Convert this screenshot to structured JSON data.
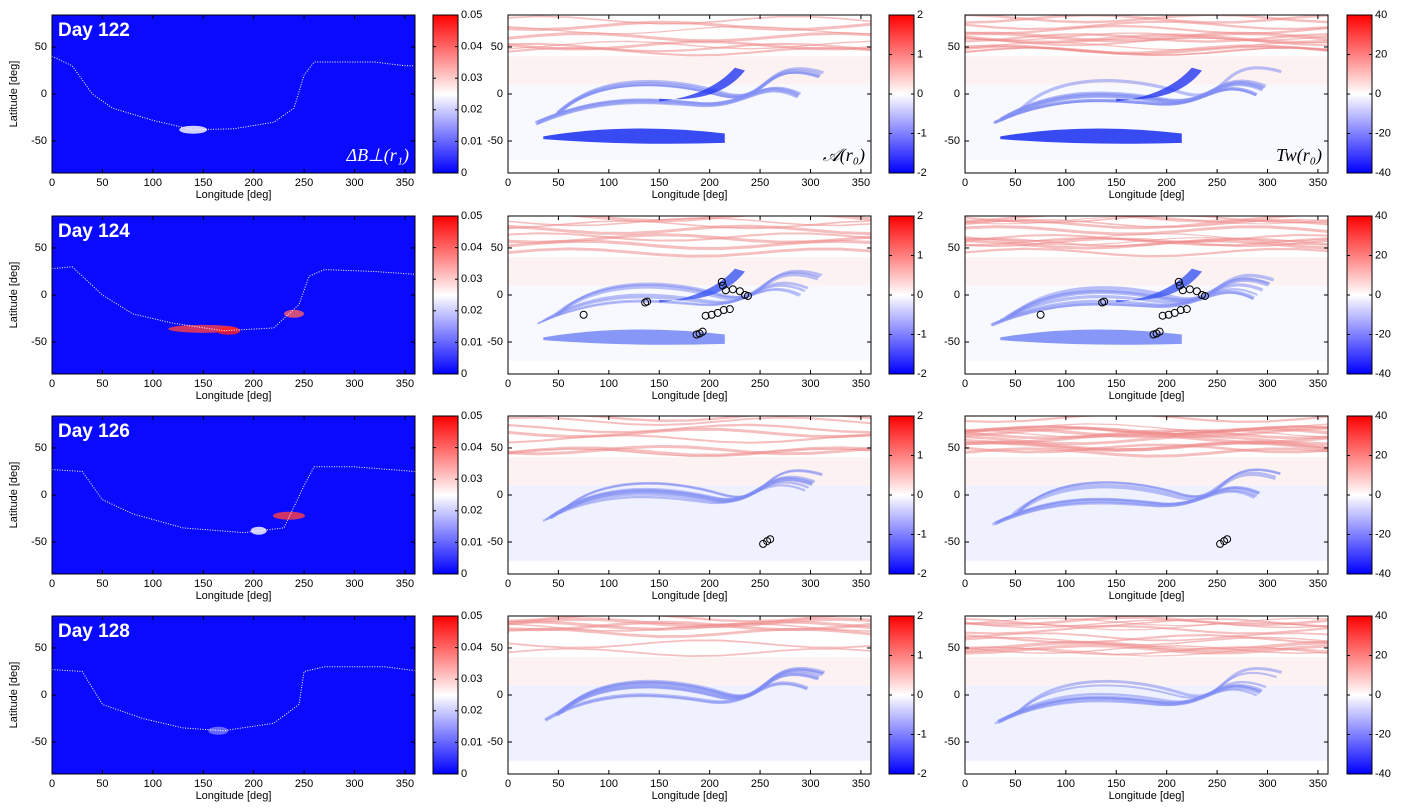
{
  "chart_data": [
    {
      "type": "heatmap",
      "annotation": "Day 122",
      "quantity": "ΔB⊥(r₁)",
      "xlabel": "Longitude [deg]",
      "ylabel": "Latitude [deg]",
      "xlim": [
        0,
        360
      ],
      "ylim": [
        -84,
        84
      ],
      "xticks": [
        0,
        50,
        100,
        150,
        200,
        250,
        300,
        350
      ],
      "yticks": [
        -50,
        0,
        50
      ],
      "background": "#0a0aff",
      "colorbar": {
        "lim": [
          0,
          0.05
        ],
        "ticks": [
          0,
          0.01,
          0.02,
          0.03,
          0.04,
          0.05
        ],
        "colors": [
          "#0000ff",
          "#ffffff",
          "#ff0000"
        ]
      },
      "neutral_line": {
        "x": [
          0,
          20,
          40,
          60,
          100,
          140,
          180,
          220,
          240,
          250,
          260,
          320,
          350,
          360
        ],
        "y": [
          40,
          30,
          0,
          -15,
          -28,
          -38,
          -37,
          -30,
          -15,
          20,
          34,
          34,
          30,
          30
        ]
      }
    },
    {
      "type": "heatmap",
      "quantity": "𝒜(r₀)",
      "xlabel": "Longitude [deg]",
      "xlim": [
        0,
        360
      ],
      "ylim": [
        -84,
        84
      ],
      "xticks": [
        0,
        50,
        100,
        150,
        200,
        250,
        300,
        350
      ],
      "yticks": [
        -50,
        0,
        50
      ],
      "colorbar": {
        "lim": [
          -2,
          2
        ],
        "ticks": [
          -2,
          -1,
          0,
          1,
          2
        ],
        "colors": [
          "#0000ff",
          "#ffffff",
          "#ff0000"
        ]
      }
    },
    {
      "type": "heatmap",
      "quantity": "Tw(r₀)",
      "xlabel": "Longitude [deg]",
      "xlim": [
        0,
        360
      ],
      "ylim": [
        -84,
        84
      ],
      "xticks": [
        0,
        50,
        100,
        150,
        200,
        250,
        300,
        350
      ],
      "yticks": [
        -50,
        0,
        50
      ],
      "colorbar": {
        "lim": [
          -40,
          40
        ],
        "ticks": [
          -40,
          -20,
          0,
          20,
          40
        ],
        "colors": [
          "#0000ff",
          "#ffffff",
          "#ff0000"
        ]
      }
    },
    {
      "type": "heatmap",
      "annotation": "Day 124",
      "xlabel": "Longitude [deg]",
      "ylabel": "Latitude [deg]",
      "xlim": [
        0,
        360
      ],
      "ylim": [
        -84,
        84
      ],
      "xticks": [
        0,
        50,
        100,
        150,
        200,
        250,
        300,
        350
      ],
      "yticks": [
        -50,
        0,
        50
      ],
      "background": "#0a0aff",
      "colorbar": {
        "lim": [
          0,
          0.05
        ],
        "ticks": [
          0,
          0.01,
          0.02,
          0.03,
          0.04,
          0.05
        ],
        "colors": [
          "#0000ff",
          "#ffffff",
          "#ff0000"
        ]
      },
      "neutral_line": {
        "x": [
          0,
          20,
          50,
          80,
          120,
          170,
          220,
          245,
          255,
          270,
          320,
          360
        ],
        "y": [
          28,
          30,
          0,
          -20,
          -30,
          -38,
          -35,
          -10,
          20,
          27,
          25,
          22
        ]
      }
    },
    {
      "type": "heatmap",
      "xlabel": "Longitude [deg]",
      "xlim": [
        0,
        360
      ],
      "ylim": [
        -84,
        84
      ],
      "xticks": [
        0,
        50,
        100,
        150,
        200,
        250,
        300,
        350
      ],
      "yticks": [
        -50,
        0,
        50
      ],
      "colorbar": {
        "lim": [
          -2,
          2
        ],
        "ticks": [
          -2,
          -1,
          0,
          1,
          2
        ],
        "colors": [
          "#0000ff",
          "#ffffff",
          "#ff0000"
        ]
      },
      "markers": {
        "x": [
          75,
          136,
          138,
          212,
          213,
          216,
          223,
          230,
          235,
          238,
          196,
          202,
          208,
          214,
          220,
          187,
          190,
          193
        ],
        "y": [
          -21,
          -8,
          -7,
          14,
          10,
          5,
          6,
          4,
          0,
          -1,
          -22,
          -21,
          -19,
          -16,
          -15,
          -42,
          -41,
          -39
        ]
      }
    },
    {
      "type": "heatmap",
      "xlabel": "Longitude [deg]",
      "xlim": [
        0,
        360
      ],
      "ylim": [
        -84,
        84
      ],
      "xticks": [
        0,
        50,
        100,
        150,
        200,
        250,
        300,
        350
      ],
      "yticks": [
        -50,
        0,
        50
      ],
      "colorbar": {
        "lim": [
          -40,
          40
        ],
        "ticks": [
          -40,
          -20,
          0,
          20,
          40
        ],
        "colors": [
          "#0000ff",
          "#ffffff",
          "#ff0000"
        ]
      },
      "markers": {
        "x": [
          75,
          136,
          138,
          212,
          213,
          216,
          223,
          230,
          235,
          238,
          196,
          202,
          208,
          214,
          220,
          187,
          190,
          193
        ],
        "y": [
          -21,
          -8,
          -7,
          14,
          10,
          5,
          6,
          4,
          0,
          -1,
          -22,
          -21,
          -19,
          -16,
          -15,
          -42,
          -41,
          -39
        ]
      }
    },
    {
      "type": "heatmap",
      "annotation": "Day 126",
      "xlabel": "Longitude [deg]",
      "ylabel": "Latitude [deg]",
      "xlim": [
        0,
        360
      ],
      "ylim": [
        -84,
        84
      ],
      "xticks": [
        0,
        50,
        100,
        150,
        200,
        250,
        300,
        350
      ],
      "yticks": [
        -50,
        0,
        50
      ],
      "background": "#0a0aff",
      "colorbar": {
        "lim": [
          0,
          0.05
        ],
        "ticks": [
          0,
          0.01,
          0.02,
          0.03,
          0.04,
          0.05
        ],
        "colors": [
          "#0000ff",
          "#ffffff",
          "#ff0000"
        ]
      },
      "neutral_line": {
        "x": [
          0,
          30,
          50,
          80,
          130,
          190,
          230,
          250,
          260,
          300,
          360
        ],
        "y": [
          27,
          25,
          -5,
          -20,
          -35,
          -40,
          -35,
          10,
          30,
          30,
          25
        ]
      }
    },
    {
      "type": "heatmap",
      "xlabel": "Longitude [deg]",
      "xlim": [
        0,
        360
      ],
      "ylim": [
        -84,
        84
      ],
      "xticks": [
        0,
        50,
        100,
        150,
        200,
        250,
        300,
        350
      ],
      "yticks": [
        -50,
        0,
        50
      ],
      "colorbar": {
        "lim": [
          -2,
          2
        ],
        "ticks": [
          -2,
          -1,
          0,
          1,
          2
        ],
        "colors": [
          "#0000ff",
          "#ffffff",
          "#ff0000"
        ]
      },
      "markers": {
        "x": [
          253,
          257,
          260
        ],
        "y": [
          -52,
          -49,
          -47
        ]
      }
    },
    {
      "type": "heatmap",
      "xlabel": "Longitude [deg]",
      "xlim": [
        0,
        360
      ],
      "ylim": [
        -84,
        84
      ],
      "xticks": [
        0,
        50,
        100,
        150,
        200,
        250,
        300,
        350
      ],
      "yticks": [
        -50,
        0,
        50
      ],
      "colorbar": {
        "lim": [
          -40,
          40
        ],
        "ticks": [
          -40,
          -20,
          0,
          20,
          40
        ],
        "colors": [
          "#0000ff",
          "#ffffff",
          "#ff0000"
        ]
      },
      "markers": {
        "x": [
          253,
          257,
          260
        ],
        "y": [
          -52,
          -49,
          -47
        ]
      }
    },
    {
      "type": "heatmap",
      "annotation": "Day 128",
      "xlabel": "Longitude [deg]",
      "ylabel": "Latitude [deg]",
      "xlim": [
        0,
        360
      ],
      "ylim": [
        -84,
        84
      ],
      "xticks": [
        0,
        50,
        100,
        150,
        200,
        250,
        300,
        350
      ],
      "yticks": [
        -50,
        0,
        50
      ],
      "background": "#0a0aff",
      "colorbar": {
        "lim": [
          0,
          0.05
        ],
        "ticks": [
          0,
          0.01,
          0.02,
          0.03,
          0.04,
          0.05
        ],
        "colors": [
          "#0000ff",
          "#ffffff",
          "#ff0000"
        ]
      },
      "neutral_line": {
        "x": [
          0,
          30,
          50,
          90,
          130,
          170,
          220,
          245,
          250,
          270,
          330,
          360
        ],
        "y": [
          27,
          25,
          -10,
          -25,
          -35,
          -38,
          -30,
          -10,
          25,
          30,
          30,
          26
        ]
      }
    },
    {
      "type": "heatmap",
      "xlabel": "Longitude [deg]",
      "xlim": [
        0,
        360
      ],
      "ylim": [
        -84,
        84
      ],
      "xticks": [
        0,
        50,
        100,
        150,
        200,
        250,
        300,
        350
      ],
      "yticks": [
        -50,
        0,
        50
      ],
      "colorbar": {
        "lim": [
          -2,
          2
        ],
        "ticks": [
          -2,
          -1,
          0,
          1,
          2
        ],
        "colors": [
          "#0000ff",
          "#ffffff",
          "#ff0000"
        ]
      }
    },
    {
      "type": "heatmap",
      "xlabel": "Longitude [deg]",
      "xlim": [
        0,
        360
      ],
      "ylim": [
        -84,
        84
      ],
      "xticks": [
        0,
        50,
        100,
        150,
        200,
        250,
        300,
        350
      ],
      "yticks": [
        -50,
        0,
        50
      ],
      "colorbar": {
        "lim": [
          -40,
          40
        ],
        "ticks": [
          -40,
          -20,
          0,
          20,
          40
        ],
        "colors": [
          "#0000ff",
          "#ffffff",
          "#ff0000"
        ]
      }
    }
  ]
}
